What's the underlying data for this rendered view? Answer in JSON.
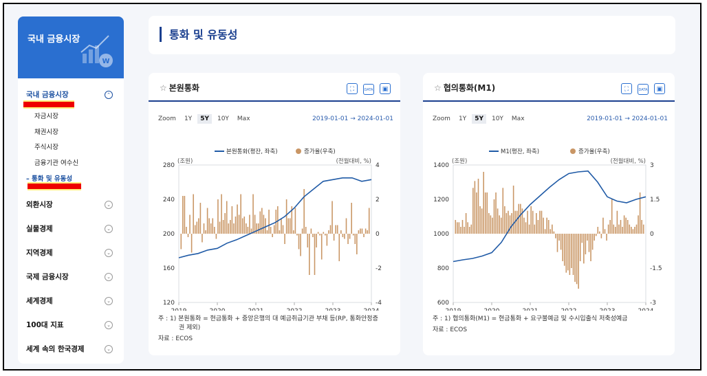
{
  "sidebar": {
    "header_title": "국내 금융시장",
    "sections": [
      {
        "label": "국내 금융시장",
        "active": true,
        "chev": "⌃"
      },
      {
        "label": "외환시장",
        "chev": "⌄"
      },
      {
        "label": "실물경제",
        "chev": "⌄"
      },
      {
        "label": "지역경제",
        "chev": "⌄"
      },
      {
        "label": "국제 금융시장",
        "chev": "⌄"
      },
      {
        "label": "세계경제",
        "chev": "⌄"
      },
      {
        "label": "100대 지표",
        "chev": "⌄"
      },
      {
        "label": "세계 속의 한국경제",
        "chev": "⌄"
      }
    ],
    "subitems": [
      "자금시장",
      "채권시장",
      "주식시장",
      "금융기관 여수신",
      "– 통화 및 유동성"
    ]
  },
  "page_title": "통화 및 유동성",
  "zoom": {
    "label": "Zoom",
    "options": [
      "1Y",
      "5Y",
      "10Y",
      "Max"
    ],
    "selected": "5Y"
  },
  "icons": [
    "fullscreen-icon",
    "data-download-icon",
    "image-download-icon"
  ],
  "icon_glyphs": [
    "⛶",
    "DATA",
    "▣"
  ],
  "cards": [
    {
      "title": "본원통화",
      "star": "☆",
      "range_start": "2019-01-01",
      "range_arrow": "→",
      "range_end": "2024-01-01",
      "note_lines": [
        "주 : 1) 본원통화 = 현금통화 + 중앙은행의 대 예금취급기관 부채 등(RP, 통화안정증",
        "권 제외)"
      ],
      "source": "자료 : ECOS"
    },
    {
      "title": "협의통화(M1)",
      "star": "☆",
      "range_start": "2019-01-01",
      "range_arrow": "→",
      "range_end": "2024-01-01",
      "note_lines": [
        "주 : 1) 협의통화(M1) = 현금통화 + 요구불예금 및 수시입출식 저축성예금"
      ],
      "source": "자료 : ECOS"
    }
  ],
  "chart_data": [
    {
      "type": "bar+line",
      "x_ticks": [
        "2019",
        "2020",
        "2021",
        "2022",
        "2023",
        "2024"
      ],
      "left_axis_unit": "(조원)",
      "right_axis_unit": "(전월대비, %)",
      "left_ylim": [
        120,
        280
      ],
      "left_ticks": [
        120,
        160,
        200,
        240,
        280
      ],
      "right_ylim": [
        -4,
        4
      ],
      "right_ticks": [
        -4,
        -2,
        0,
        2,
        4
      ],
      "right_tick_labels": [
        "-4",
        "-2",
        "0",
        "2",
        "4"
      ],
      "legend": [
        {
          "name": "본원통화(평잔, 좌축)",
          "kind": "line",
          "color": "#1f5aa6"
        },
        {
          "name": "증가율(우축)",
          "kind": "bar",
          "color": "#c99665"
        }
      ],
      "bar_series": {
        "name": "증가율(우축)",
        "values": [
          -0.9,
          2.2,
          2.2,
          0.4,
          -0.2,
          1.1,
          -1.1,
          2.3,
          0.5,
          0.7,
          0.9,
          1.8,
          -0.5,
          0.6,
          0.2,
          1.5,
          0.9,
          0.6,
          0.9,
          0.4,
          -0.3,
          2.0,
          0.7,
          2.3,
          0.8,
          1.2,
          1.9,
          0.6,
          0.8,
          1.6,
          0.6,
          1.0,
          1.7,
          1.1,
          2.3,
          0.9,
          1.0,
          0.6,
          0.4,
          1.1,
          0.3,
          2.3,
          1.1,
          0.6,
          0.6,
          1.3,
          1.5,
          1.1,
          0.9,
          0.2,
          1.4,
          0.4,
          -0.2,
          0.5,
          1.4,
          1.6,
          0.2,
          0.9,
          0.5,
          -0.6,
          2.0,
          0.9,
          0.9,
          1.6,
          0.2,
          1.5,
          -0.1,
          -0.9,
          -1.3,
          0.3,
          2.6,
          0.4,
          -0.8,
          -2.4,
          0.3,
          -0.2,
          -2.4,
          -0.8,
          0.1,
          -0.1,
          -1.5,
          0.1,
          -0.1,
          -0.7,
          0.2,
          0.5,
          1.9,
          -0.4,
          0.5,
          0.5,
          -1.6,
          0.2,
          -0.2,
          -0.3,
          0.9,
          -0.6,
          -0.3,
          1.8,
          -0.1,
          -0.6,
          -1.2,
          0.2,
          0.3,
          0.3,
          -0.2,
          0.3,
          0.2,
          1.5
        ]
      },
      "line_series": {
        "name": "본원통화(평잔, 좌축)",
        "points": [
          [
            2019.0,
            172
          ],
          [
            2019.25,
            175
          ],
          [
            2019.5,
            177
          ],
          [
            2019.75,
            181
          ],
          [
            2020.0,
            183
          ],
          [
            2020.25,
            189
          ],
          [
            2020.5,
            193
          ],
          [
            2020.75,
            198
          ],
          [
            2021.0,
            203
          ],
          [
            2021.25,
            208
          ],
          [
            2021.5,
            213
          ],
          [
            2021.75,
            220
          ],
          [
            2022.0,
            230
          ],
          [
            2022.25,
            243
          ],
          [
            2022.5,
            252
          ],
          [
            2022.75,
            261
          ],
          [
            2023.0,
            263
          ],
          [
            2023.25,
            265
          ],
          [
            2023.5,
            265
          ],
          [
            2023.75,
            261
          ],
          [
            2024.0,
            263
          ]
        ]
      }
    },
    {
      "type": "bar+line",
      "x_ticks": [
        "2019",
        "2020",
        "2021",
        "2022",
        "2023",
        "2024"
      ],
      "left_axis_unit": "(조원)",
      "right_axis_unit": "(전월대비, %)",
      "left_ylim": [
        600,
        1400
      ],
      "left_ticks": [
        600,
        800,
        1000,
        1200,
        1400
      ],
      "right_ylim": [
        -3,
        3
      ],
      "right_ticks": [
        -3,
        -1.5,
        0,
        1.5,
        3
      ],
      "right_tick_labels": [
        "-3",
        "-1.5",
        "0",
        "1.5",
        "3"
      ],
      "legend": [
        {
          "name": "M1(평잔, 좌축)",
          "kind": "line",
          "color": "#1f5aa6"
        },
        {
          "name": "증가율(우축)",
          "kind": "bar",
          "color": "#c99665"
        }
      ],
      "bar_series": {
        "name": "증가율(우축)",
        "values": [
          0.6,
          0.5,
          0.5,
          0.3,
          0.6,
          0.3,
          0.9,
          0.5,
          0.3,
          0.4,
          2.0,
          2.3,
          1.8,
          2.4,
          1.2,
          1.1,
          2.7,
          1.8,
          1.8,
          0.9,
          0.8,
          0.7,
          1.5,
          1.8,
          1.1,
          0.8,
          0.7,
          2.0,
          1.2,
          0.9,
          1.0,
          0.8,
          0.9,
          2.1,
          1.0,
          1.0,
          1.3,
          1.3,
          1.1,
          0.7,
          0.5,
          1.0,
          0.4,
          1.2,
          1.0,
          0.4,
          0.9,
          0.6,
          1.0,
          1.0,
          0.7,
          0.2,
          0.7,
          0.6,
          0.2,
          0.4,
          0.1,
          -0.2,
          -0.8,
          -0.3,
          -0.7,
          -1.2,
          -1.4,
          -1.7,
          -1.6,
          -1.8,
          -1.5,
          -1.8,
          -2.1,
          -2.2,
          -2.4,
          -1.2,
          -0.4,
          -1.3,
          -0.9,
          -0.3,
          -0.8,
          -1.2,
          -0.7,
          -0.3,
          -0.1,
          0.3,
          0.1,
          -0.2,
          0.7,
          0.2,
          -0.3,
          0.4,
          0.6,
          1.5,
          0.4,
          0.3,
          1.0,
          0.4,
          0.6,
          0.3,
          0.8,
          0.7,
          0.6,
          0.4,
          0.3,
          0.2,
          0.3,
          0.4,
          0.8,
          1.8,
          0.6,
          0.4
        ]
      },
      "line_series": {
        "name": "M1(평잔, 좌축)",
        "points": [
          [
            2019.0,
            838
          ],
          [
            2019.25,
            848
          ],
          [
            2019.5,
            856
          ],
          [
            2019.75,
            870
          ],
          [
            2020.0,
            890
          ],
          [
            2020.25,
            950
          ],
          [
            2020.5,
            1040
          ],
          [
            2020.75,
            1110
          ],
          [
            2021.0,
            1170
          ],
          [
            2021.25,
            1220
          ],
          [
            2021.5,
            1270
          ],
          [
            2021.75,
            1315
          ],
          [
            2022.0,
            1350
          ],
          [
            2022.25,
            1360
          ],
          [
            2022.5,
            1365
          ],
          [
            2022.75,
            1300
          ],
          [
            2023.0,
            1215
          ],
          [
            2023.25,
            1190
          ],
          [
            2023.5,
            1180
          ],
          [
            2023.75,
            1200
          ],
          [
            2024.0,
            1215
          ]
        ]
      }
    }
  ]
}
